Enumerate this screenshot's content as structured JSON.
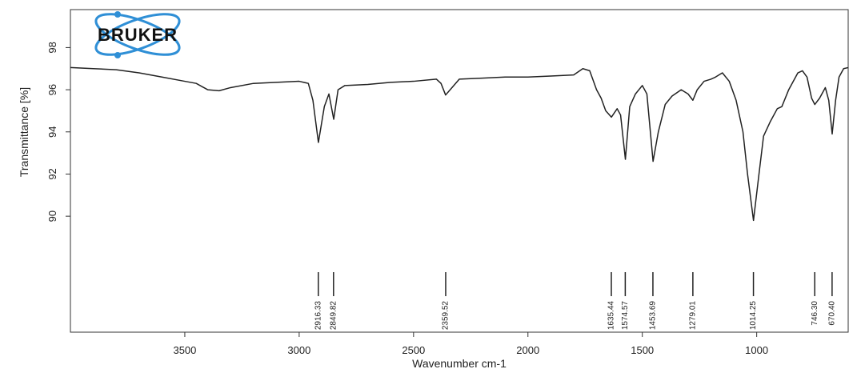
{
  "logo": "BRUKER",
  "chart_data": {
    "type": "line",
    "xlabel": "Wavenumber cm-1",
    "ylabel": "Transmittance [%]",
    "xlim": [
      4000,
      600
    ],
    "ylim": [
      84.5,
      99.8
    ],
    "xticks": [
      3500,
      3000,
      2500,
      2000,
      1500,
      1000
    ],
    "yticks": [
      90,
      92,
      94,
      96,
      98
    ],
    "color": "#222222",
    "x": [
      4000,
      3900,
      3800,
      3700,
      3600,
      3500,
      3450,
      3400,
      3350,
      3300,
      3200,
      3100,
      3000,
      2960,
      2940,
      2916,
      2890,
      2870,
      2849,
      2830,
      2800,
      2700,
      2600,
      2500,
      2400,
      2380,
      2360,
      2340,
      2300,
      2200,
      2100,
      2000,
      1900,
      1800,
      1760,
      1730,
      1700,
      1680,
      1660,
      1635,
      1610,
      1595,
      1574,
      1555,
      1530,
      1500,
      1480,
      1453,
      1430,
      1400,
      1370,
      1330,
      1300,
      1279,
      1260,
      1230,
      1200,
      1180,
      1150,
      1120,
      1090,
      1060,
      1040,
      1014,
      990,
      970,
      940,
      910,
      890,
      860,
      820,
      800,
      780,
      760,
      746,
      725,
      700,
      685,
      670,
      655,
      640,
      620,
      600
    ],
    "values": [
      97.05,
      97.0,
      96.95,
      96.8,
      96.6,
      96.4,
      96.3,
      96.0,
      95.95,
      96.1,
      96.3,
      96.35,
      96.4,
      96.3,
      95.5,
      93.5,
      95.2,
      95.8,
      94.6,
      96.0,
      96.2,
      96.25,
      96.35,
      96.4,
      96.5,
      96.3,
      95.75,
      96.0,
      96.5,
      96.55,
      96.6,
      96.6,
      96.65,
      96.7,
      97.0,
      96.9,
      96.0,
      95.6,
      95.0,
      94.7,
      95.1,
      94.8,
      92.7,
      95.2,
      95.8,
      96.2,
      95.8,
      92.6,
      94.0,
      95.3,
      95.7,
      96.0,
      95.8,
      95.5,
      96.0,
      96.4,
      96.5,
      96.6,
      96.8,
      96.4,
      95.5,
      94.0,
      92.0,
      89.8,
      92.0,
      93.8,
      94.5,
      95.1,
      95.2,
      96.0,
      96.8,
      96.9,
      96.6,
      95.6,
      95.3,
      95.6,
      96.1,
      95.5,
      93.9,
      95.5,
      96.6,
      97.0,
      97.05
    ],
    "peaks": [
      2916.33,
      2849.82,
      2359.52,
      1635.44,
      1574.57,
      1453.69,
      1279.01,
      1014.25,
      {
        "value": 746.3,
        "label": "746.30"
      },
      {
        "value": 670.4,
        "label": "670.40"
      }
    ]
  }
}
